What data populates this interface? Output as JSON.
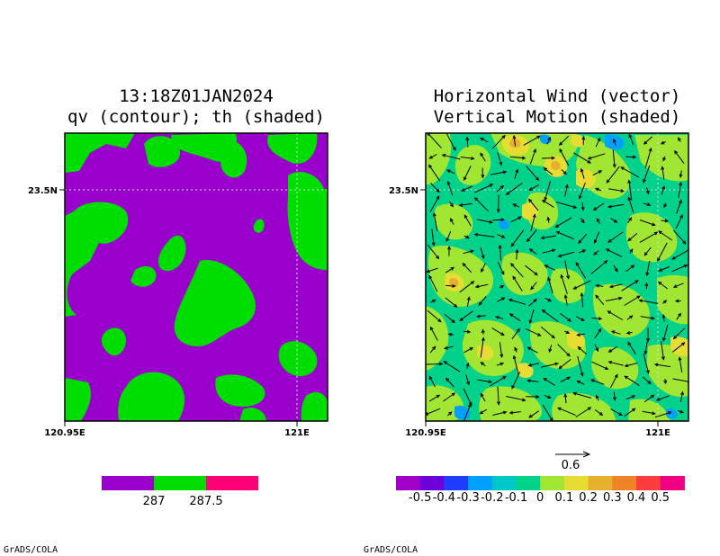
{
  "credit": "GrADS/COLA",
  "chart_data": [
    {
      "type": "heatmap",
      "title_line1": "13:18Z01JAN2024",
      "title_line2": "qv (contour); th (shaded)",
      "xlim": [
        120.95,
        121.005
      ],
      "ylim": [
        23.46,
        23.51
      ],
      "x_ticks": [
        {
          "value": 120.95,
          "label": "120.95E"
        },
        {
          "value": 121.0,
          "label": "121E"
        }
      ],
      "y_ticks": [
        {
          "value": 23.5,
          "label": "23.5N"
        }
      ],
      "grid": "dotted at ticks",
      "colorbar": {
        "colors": [
          "#9900cc",
          "#00dd00",
          "#ff0077"
        ],
        "labels": [
          "287",
          "287.5"
        ]
      }
    },
    {
      "type": "vector",
      "title_line1": "Horizontal Wind (vector)",
      "title_line2": "Vertical Motion (shaded)",
      "xlim": [
        120.95,
        121.005
      ],
      "ylim": [
        23.46,
        23.51
      ],
      "x_ticks": [
        {
          "value": 120.95,
          "label": "120.95E"
        },
        {
          "value": 121.0,
          "label": "121E"
        }
      ],
      "y_ticks": [
        {
          "value": 23.5,
          "label": "23.5N"
        }
      ],
      "grid": "dotted at ticks",
      "vector_reference": {
        "label": "0.6",
        "value": 0.6
      },
      "colorbar": {
        "colors": [
          "#a000c8",
          "#6e00dc",
          "#1e3cff",
          "#00a0ff",
          "#00c8c8",
          "#00d28c",
          "#a0e632",
          "#e6dc32",
          "#e6af2d",
          "#f08228",
          "#fa3c3c",
          "#f00082"
        ],
        "labels": [
          "-0.5",
          "-0.4",
          "-0.3",
          "-0.2",
          "-0.1",
          "0",
          "0.1",
          "0.2",
          "0.3",
          "0.4",
          "0.5"
        ]
      }
    }
  ]
}
